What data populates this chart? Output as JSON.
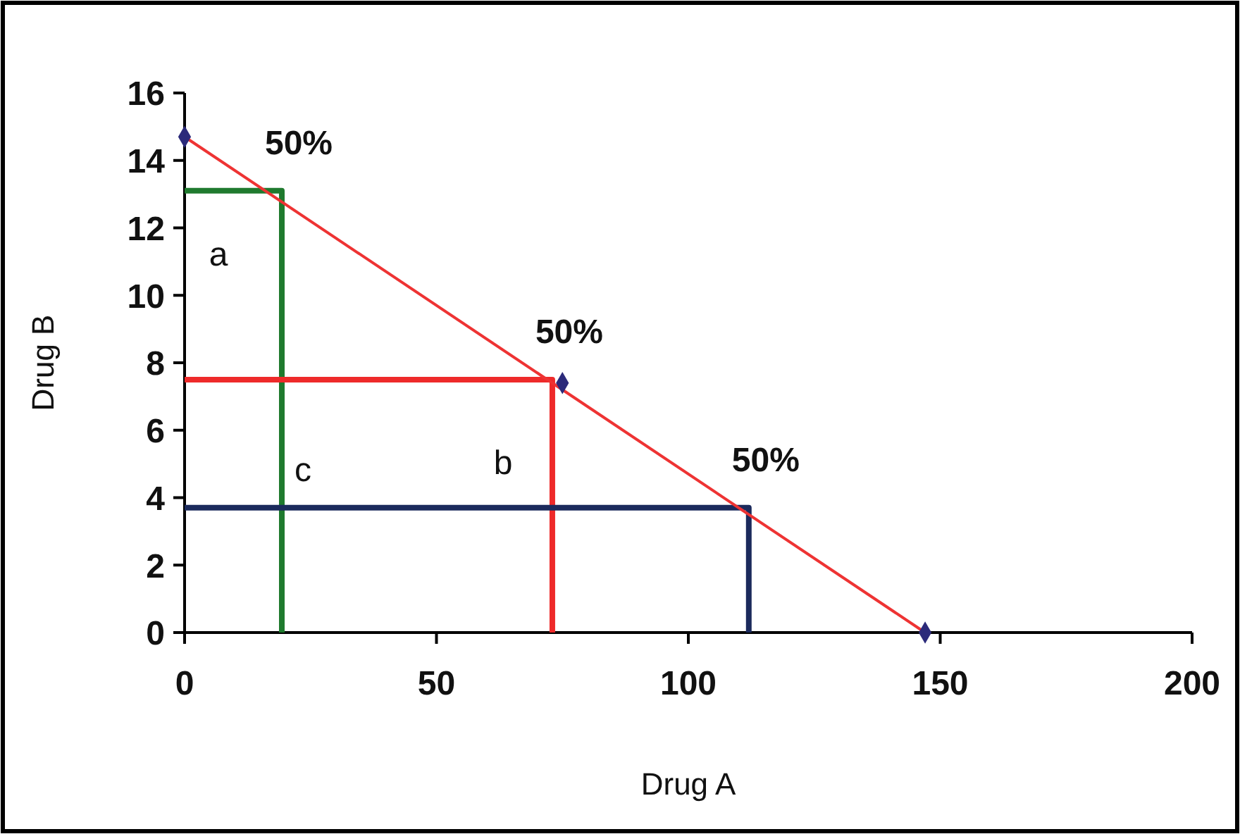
{
  "chart_data": {
    "type": "line",
    "xlabel": "Drug A",
    "ylabel": "Drug B",
    "xlim": [
      0,
      200
    ],
    "xticks": [
      0,
      50,
      100,
      150,
      200
    ],
    "ylim": [
      0,
      16
    ],
    "yticks": [
      0,
      2,
      4,
      6,
      8,
      10,
      12,
      14,
      16
    ],
    "grid": false,
    "marker": "none",
    "line_style": "solid",
    "series": [
      {
        "color": "#1f7a2e",
        "x": [
          0,
          19.3,
          19.3
        ],
        "values": [
          13.1,
          13.1,
          0
        ]
      },
      {
        "color": "#ee2a2a",
        "x": [
          0,
          73,
          73
        ],
        "values": [
          7.5,
          7.5,
          0
        ]
      },
      {
        "color": "#1b2a5c",
        "x": [
          0,
          112,
          112
        ],
        "values": [
          3.7,
          3.7,
          0
        ]
      },
      {
        "color": "#ee3333",
        "x": [
          0,
          147
        ],
        "values": [
          14.7,
          0
        ]
      },
      {
        "type": "scatter",
        "color": "#2b2a7a",
        "marker": "diamond",
        "x": [
          0,
          75,
          147
        ],
        "values": [
          14.7,
          7.4,
          0
        ]
      }
    ],
    "annotations": [
      {
        "text": "50%",
        "x": 19.3,
        "y": 13.1
      },
      {
        "text": "50%",
        "x": 73,
        "y": 7.5
      },
      {
        "text": "50%",
        "x": 112,
        "y": 3.7
      },
      "a",
      "b",
      "c"
    ]
  }
}
